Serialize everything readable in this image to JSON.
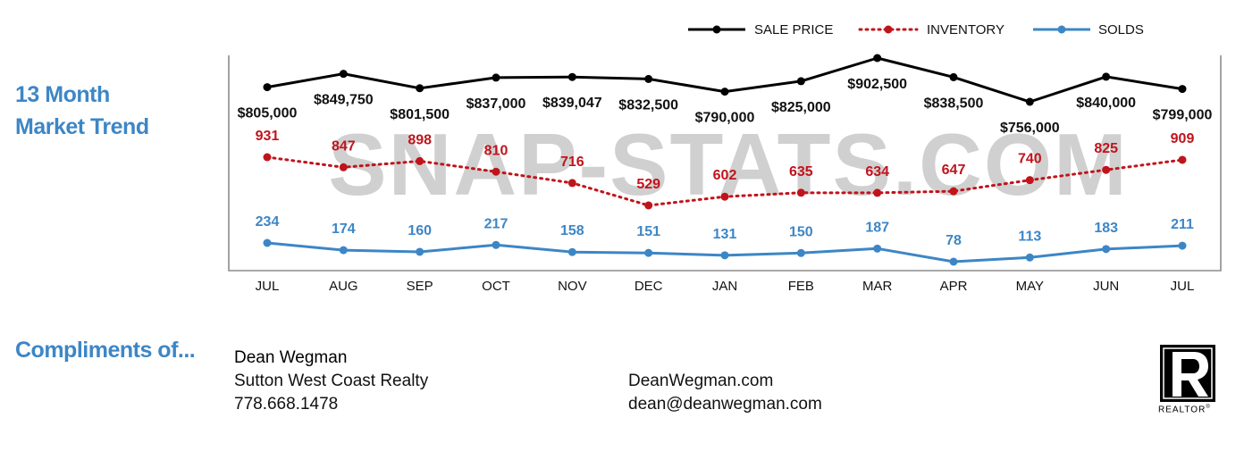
{
  "side_title": [
    "13 Month",
    "Market Trend"
  ],
  "compliments_label": "Compliments of...",
  "agent": {
    "name": "Dean Wegman",
    "company": "Sutton West Coast Realty",
    "phone": "778.668.1478",
    "website": "DeanWegman.com",
    "email": "dean@deanwegman.com"
  },
  "logo": {
    "letter": "R",
    "label": "REALTOR",
    "mark": "®",
    "icon": "realtor-r-icon"
  },
  "watermark": "SNAP-STATS.COM",
  "chart_data": {
    "type": "line",
    "categories": [
      "JUL",
      "AUG",
      "SEP",
      "OCT",
      "NOV",
      "DEC",
      "JAN",
      "FEB",
      "MAR",
      "APR",
      "MAY",
      "JUN",
      "JUL"
    ],
    "legend_position": "top-right",
    "grid": false,
    "series": [
      {
        "name": "SALE PRICE",
        "color": "#000000",
        "style": "solid",
        "values": [
          805000,
          849750,
          801500,
          837000,
          839047,
          832500,
          790000,
          825000,
          902500,
          838500,
          756000,
          840000,
          799000
        ],
        "labels": [
          "$805,000",
          "$849,750",
          "$801,500",
          "$837,000",
          "$839,047",
          "$832,500",
          "$790,000",
          "$825,000",
          "$902,500",
          "$838,500",
          "$756,000",
          "$840,000",
          "$799,000"
        ]
      },
      {
        "name": "INVENTORY",
        "color": "#c0141c",
        "style": "dotted",
        "values": [
          931,
          847,
          898,
          810,
          716,
          529,
          602,
          635,
          634,
          647,
          740,
          825,
          909
        ],
        "labels": [
          "931",
          "847",
          "898",
          "810",
          "716",
          "529",
          "602",
          "635",
          "634",
          "647",
          "740",
          "825",
          "909"
        ]
      },
      {
        "name": "SOLDS",
        "color": "#3d86c6",
        "style": "solid",
        "values": [
          234,
          174,
          160,
          217,
          158,
          151,
          131,
          150,
          187,
          78,
          113,
          183,
          211
        ],
        "labels": [
          "234",
          "174",
          "160",
          "217",
          "158",
          "151",
          "131",
          "150",
          "187",
          "78",
          "113",
          "183",
          "211"
        ]
      }
    ]
  }
}
